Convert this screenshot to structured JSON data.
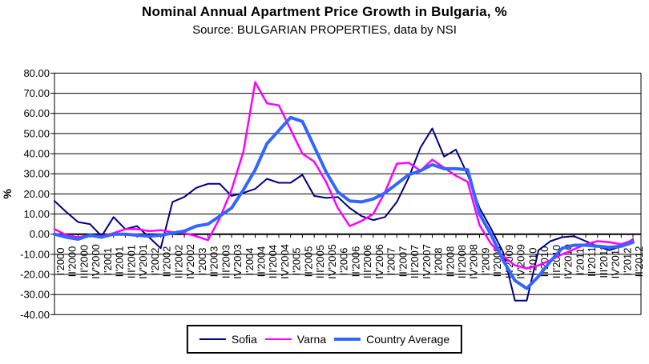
{
  "title": "Nominal Annual Apartment Price Growth in Bulgaria, %",
  "subtitle": "Source: BULGARIAN PROPERTIES, data by NSI",
  "colors": {
    "sofia": "#000080",
    "varna": "#FF00FF",
    "country_average": "#3366FF",
    "grid": "#000000",
    "axis": "#000000",
    "background": "#FFFFFF"
  },
  "chart_data": {
    "type": "line",
    "title": "Nominal Annual Apartment Price Growth in Bulgaria, %",
    "subtitle": "Source: BULGARIAN PROPERTIES, data by NSI",
    "xlabel": "",
    "ylabel": "%",
    "ylim": [
      -40,
      80
    ],
    "ytick_step": 10,
    "ytick_labels": [
      "80.00",
      "70.00",
      "60.00",
      "50.00",
      "40.00",
      "30.00",
      "20.00",
      "10.00",
      "0.00",
      "-10.00",
      "-20.00",
      "-30.00",
      "-40.00"
    ],
    "grid": true,
    "legend_position": "bottom",
    "categories": [
      "I'2000",
      "II'2000",
      "III'2000",
      "IV'2000",
      "I'2001",
      "II'2001",
      "III'2001",
      "IV'2001",
      "I'2002",
      "II'2002",
      "III'2002",
      "IV'2002",
      "I'2003",
      "II'2003",
      "III'2003",
      "IV'2003",
      "I'2004",
      "II'2004",
      "III'2004",
      "IV'2004",
      "I'2005",
      "II'2005",
      "III'2005",
      "IV'2005",
      "I'2006",
      "II'2006",
      "III'2006",
      "IV'2006",
      "I'2007",
      "II'2007",
      "III'2007",
      "IV'2007",
      "I'2008",
      "II'2008",
      "III'2008",
      "IV'2008",
      "I'2009",
      "II'2009",
      "III'2009",
      "IV'2009",
      "I'2010",
      "II'2010",
      "III'2010",
      "IV'2010",
      "I'2011",
      "II'2011",
      "III'2011",
      "IV'2011",
      "I'2012",
      "II'2012"
    ],
    "series": [
      {
        "name": "Sofia",
        "color": "#000080",
        "line_width": 2,
        "values": [
          16.5,
          11,
          6,
          5,
          -1,
          8.5,
          2.5,
          4,
          -1.5,
          -7,
          16,
          18.5,
          23,
          25,
          25,
          19,
          20.5,
          22.5,
          27.5,
          25.5,
          25.5,
          29.5,
          19,
          18,
          18.5,
          13,
          9,
          7,
          8.5,
          16,
          28,
          43,
          52.5,
          38.5,
          42,
          29.5,
          13,
          2.5,
          -9,
          -33,
          -33,
          -8,
          -3.5,
          -1.5,
          -1,
          -3.5,
          -6,
          -8,
          -6,
          -2.5
        ]
      },
      {
        "name": "Varna",
        "color": "#FF00FF",
        "line_width": 2.5,
        "values": [
          2.5,
          -0.5,
          -1.5,
          -0.5,
          -1,
          0.5,
          2.5,
          2.5,
          1.5,
          2,
          1,
          0.5,
          -1,
          -3,
          8,
          22,
          41,
          75.5,
          65,
          64,
          52,
          40,
          36,
          26,
          13,
          4,
          6.5,
          10,
          21,
          35,
          35.5,
          31.5,
          37,
          33,
          29,
          26,
          4.5,
          -5,
          -11,
          -15.5,
          -17,
          -15.5,
          -13,
          -10,
          -7.5,
          -5,
          -3.5,
          -4,
          -5,
          -3
        ]
      },
      {
        "name": "Country Average",
        "color": "#3366FF",
        "line_width": 4,
        "values": [
          0,
          -1.5,
          -2.5,
          -0.5,
          -1.5,
          0,
          0,
          -0.5,
          -1,
          -0.5,
          0.5,
          1.5,
          4,
          5,
          9,
          13,
          22,
          32,
          45,
          51.5,
          58,
          56,
          43.5,
          31,
          21,
          16.5,
          16,
          17.5,
          20.5,
          25,
          29.5,
          31.5,
          34.5,
          32.5,
          32.5,
          32,
          10,
          -0.5,
          -13,
          -23,
          -27,
          -21,
          -13.5,
          -7,
          -5.5,
          -5.5,
          -6,
          -6.5,
          -6,
          -4
        ]
      }
    ]
  }
}
